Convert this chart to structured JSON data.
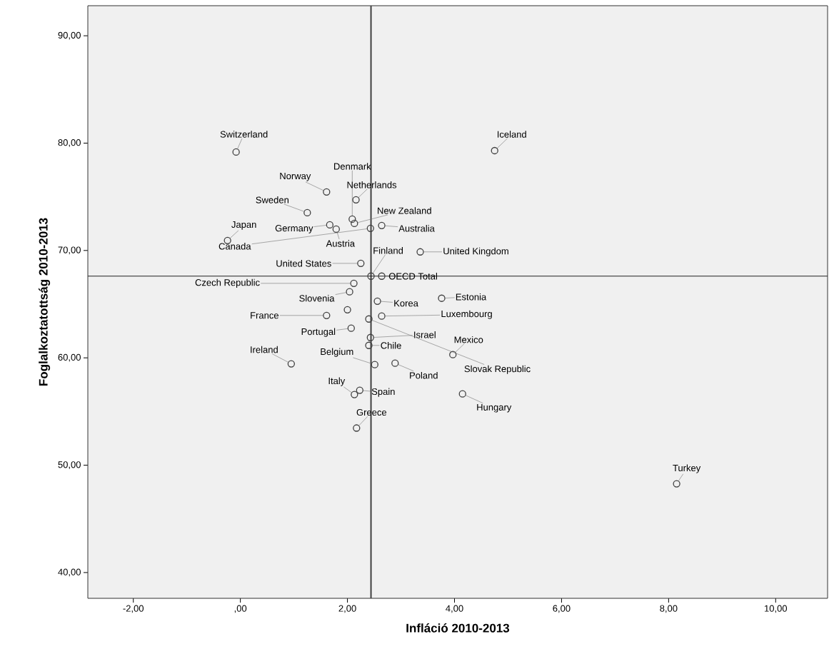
{
  "chart_data": {
    "type": "scatter",
    "xlabel": "Infláció 2010-2013",
    "ylabel": "Foglalkoztatottság 2010-2013",
    "x": [
      -0.08,
      4.75,
      2.09,
      1.61,
      2.16,
      2.13,
      1.25,
      -0.24,
      1.67,
      1.79,
      2.43,
      2.64,
      2.44,
      3.36,
      2.25,
      2.64,
      2.12,
      2.04,
      2.56,
      3.76,
      1.61,
      2.64,
      2.07,
      2.43,
      3.97,
      2.4,
      2.51,
      2.4,
      0.95,
      2.89,
      2.13,
      2.23,
      2.17,
      4.15,
      8.15,
      2.0
    ],
    "values": [
      79.17,
      79.3,
      72.92,
      75.45,
      74.72,
      72.52,
      73.52,
      70.93,
      72.39,
      71.99,
      72.06,
      72.33,
      67.61,
      69.87,
      68.8,
      67.61,
      66.94,
      66.15,
      65.28,
      65.55,
      63.95,
      63.89,
      62.76,
      61.89,
      60.3,
      61.16,
      59.37,
      63.62,
      59.44,
      59.5,
      56.58,
      56.98,
      53.46,
      56.64,
      48.27,
      64.48
    ],
    "color": "#404040",
    "marker": "circle",
    "xlim": [
      -2.85,
      10.97
    ],
    "ylim": [
      37.6,
      92.8
    ],
    "xticks": [
      {
        "value": -2,
        "label": "-2,00"
      },
      {
        "value": 0,
        "label": ",00"
      },
      {
        "value": 2,
        "label": "2,00"
      },
      {
        "value": 4,
        "label": "4,00"
      },
      {
        "value": 6,
        "label": "6,00"
      },
      {
        "value": 8,
        "label": "8,00"
      },
      {
        "value": 10,
        "label": "10,00"
      }
    ],
    "yticks": [
      {
        "value": 40,
        "label": "40,00"
      },
      {
        "value": 50,
        "label": "50,00"
      },
      {
        "value": 60,
        "label": "60,00"
      },
      {
        "value": 70,
        "label": "70,00"
      },
      {
        "value": 80,
        "label": "80,00"
      },
      {
        "value": 90,
        "label": "90,00"
      }
    ],
    "ref_lines": [
      {
        "axis": "x",
        "value": 2.44,
        "color": "#404040"
      },
      {
        "axis": "y",
        "value": 67.61,
        "color": "#202020"
      }
    ],
    "annotations": [
      {
        "text": "Switzerland",
        "x": -0.08,
        "y": 79.17
      },
      {
        "text": "Iceland",
        "x": 4.75,
        "y": 79.3
      },
      {
        "text": "Denmark",
        "x": 2.09,
        "y": 72.92
      },
      {
        "text": "Norway",
        "x": 1.61,
        "y": 75.45
      },
      {
        "text": "Netherlands",
        "x": 2.16,
        "y": 74.72
      },
      {
        "text": "New Zealand",
        "x": 2.13,
        "y": 72.52
      },
      {
        "text": "Sweden",
        "x": 1.25,
        "y": 73.52
      },
      {
        "text": "Japan",
        "x": -0.24,
        "y": 70.93
      },
      {
        "text": "Germany",
        "x": 1.67,
        "y": 72.39
      },
      {
        "text": "Austria",
        "x": 1.79,
        "y": 71.99
      },
      {
        "text": "Canada",
        "x": 2.43,
        "y": 72.06
      },
      {
        "text": "Australia",
        "x": 2.64,
        "y": 72.33
      },
      {
        "text": "Finland",
        "x": 2.44,
        "y": 67.61
      },
      {
        "text": "United Kingdom",
        "x": 3.36,
        "y": 69.87
      },
      {
        "text": "United States",
        "x": 2.25,
        "y": 68.8
      },
      {
        "text": "OECD Total",
        "x": 2.64,
        "y": 67.61
      },
      {
        "text": "Czech Republic",
        "x": 2.12,
        "y": 66.94
      },
      {
        "text": "Slovenia",
        "x": 2.04,
        "y": 66.15
      },
      {
        "text": "Korea",
        "x": 2.56,
        "y": 65.28
      },
      {
        "text": "Estonia",
        "x": 3.76,
        "y": 65.55
      },
      {
        "text": "France",
        "x": 1.61,
        "y": 63.95
      },
      {
        "text": "Luxembourg",
        "x": 2.64,
        "y": 63.89
      },
      {
        "text": "Portugal",
        "x": 2.07,
        "y": 62.76
      },
      {
        "text": "Israel",
        "x": 2.43,
        "y": 61.89
      },
      {
        "text": "Mexico",
        "x": 3.97,
        "y": 60.3
      },
      {
        "text": "Chile",
        "x": 2.4,
        "y": 61.16
      },
      {
        "text": "Belgium",
        "x": 2.51,
        "y": 59.37
      },
      {
        "text": "Slovak Republic",
        "x": 2.4,
        "y": 63.62
      },
      {
        "text": "Ireland",
        "x": 0.95,
        "y": 59.44
      },
      {
        "text": "Poland",
        "x": 2.89,
        "y": 59.5
      },
      {
        "text": "Italy",
        "x": 2.13,
        "y": 56.58
      },
      {
        "text": "Spain",
        "x": 2.23,
        "y": 56.98
      },
      {
        "text": "Greece",
        "x": 2.17,
        "y": 53.46
      },
      {
        "text": "Hungary",
        "x": 4.15,
        "y": 56.64
      },
      {
        "text": "Turkey",
        "x": 8.15,
        "y": 48.27
      }
    ]
  }
}
